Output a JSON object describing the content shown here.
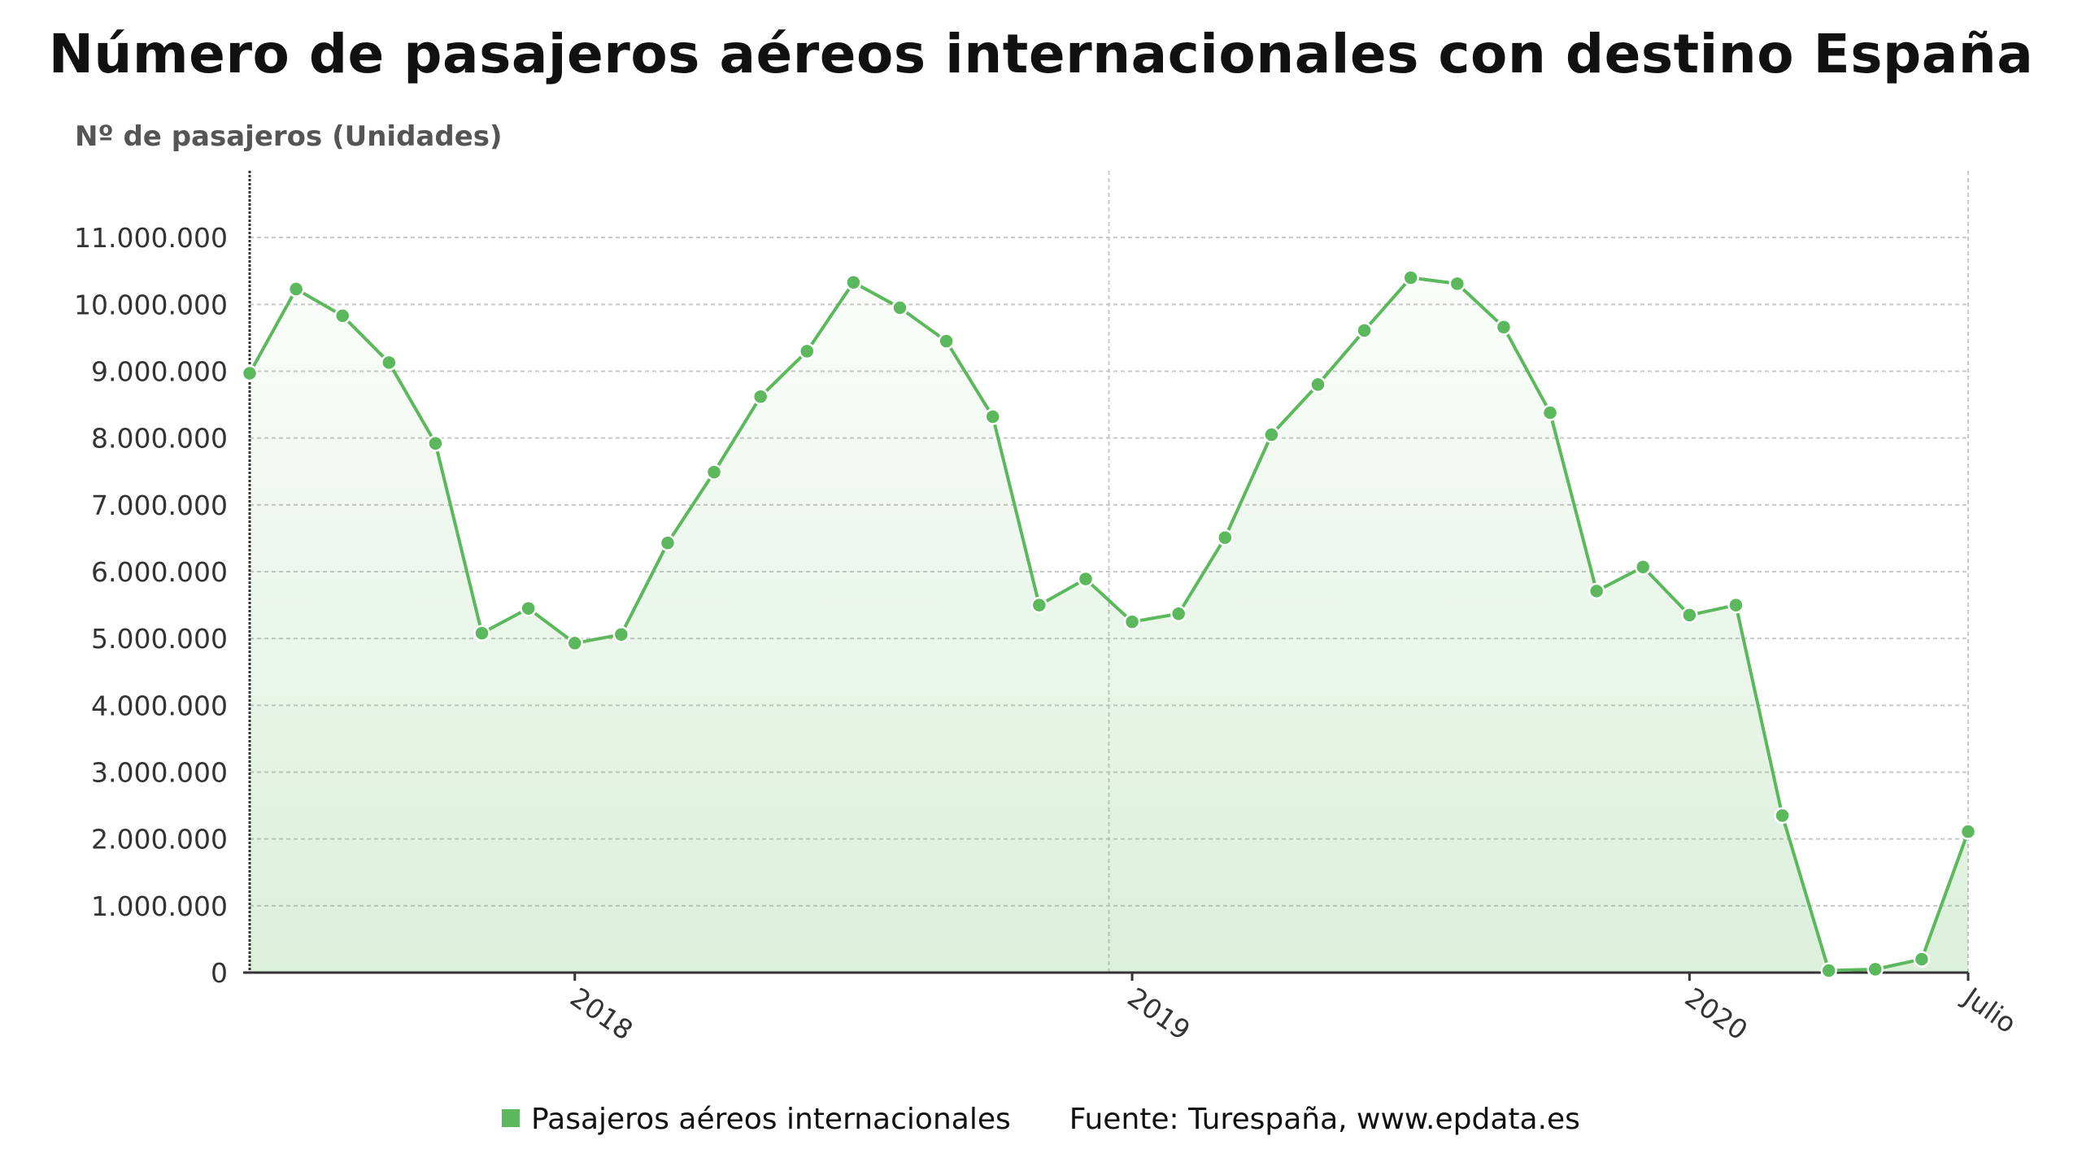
{
  "title": "Número de pasajeros aéreos internacionales con destino España",
  "colors": {
    "series": "#5cb85c",
    "grid": "#c8c8c8",
    "axis": "#333333",
    "text": "#333333"
  },
  "legend": {
    "label": "Pasajeros aéreos internacionales",
    "source": "Fuente: Turespaña, www.epdata.es"
  },
  "chart_data": {
    "type": "area",
    "ylabel": "Nº de pasajeros (Unidades)",
    "ylim": [
      0,
      12000000
    ],
    "yticks": [
      "0",
      "1.000.000",
      "2.000.000",
      "3.000.000",
      "4.000.000",
      "5.000.000",
      "6.000.000",
      "7.000.000",
      "8.000.000",
      "9.000.000",
      "10.000.000",
      "11.000.000"
    ],
    "xtick_labels": [
      "2018",
      "2019",
      "2020",
      "Julio"
    ],
    "grid": true,
    "x": [
      "2017-06",
      "2017-07",
      "2017-08",
      "2017-09",
      "2017-10",
      "2017-11",
      "2017-12",
      "2018-01",
      "2018-02",
      "2018-03",
      "2018-04",
      "2018-05",
      "2018-06",
      "2018-07",
      "2018-08",
      "2018-09",
      "2018-10",
      "2018-11",
      "2018-12",
      "2019-01",
      "2019-02",
      "2019-03",
      "2019-04",
      "2019-05",
      "2019-06",
      "2019-07",
      "2019-08",
      "2019-09",
      "2019-10",
      "2019-11",
      "2019-12",
      "2020-01",
      "2020-02",
      "2020-03",
      "2020-04",
      "2020-05",
      "2020-06",
      "2020-07"
    ],
    "series": [
      {
        "name": "Pasajeros aéreos internacionales",
        "values": [
          8970000,
          10230000,
          9830000,
          9130000,
          7920000,
          5080000,
          5450000,
          4930000,
          5060000,
          6430000,
          7490000,
          8620000,
          9300000,
          10330000,
          9950000,
          9450000,
          8320000,
          5500000,
          5890000,
          5250000,
          5370000,
          6510000,
          8050000,
          8800000,
          9610000,
          10400000,
          10310000,
          9660000,
          8380000,
          5710000,
          6070000,
          5350000,
          5500000,
          2350000,
          30000,
          50000,
          200000,
          2110000
        ]
      }
    ]
  }
}
